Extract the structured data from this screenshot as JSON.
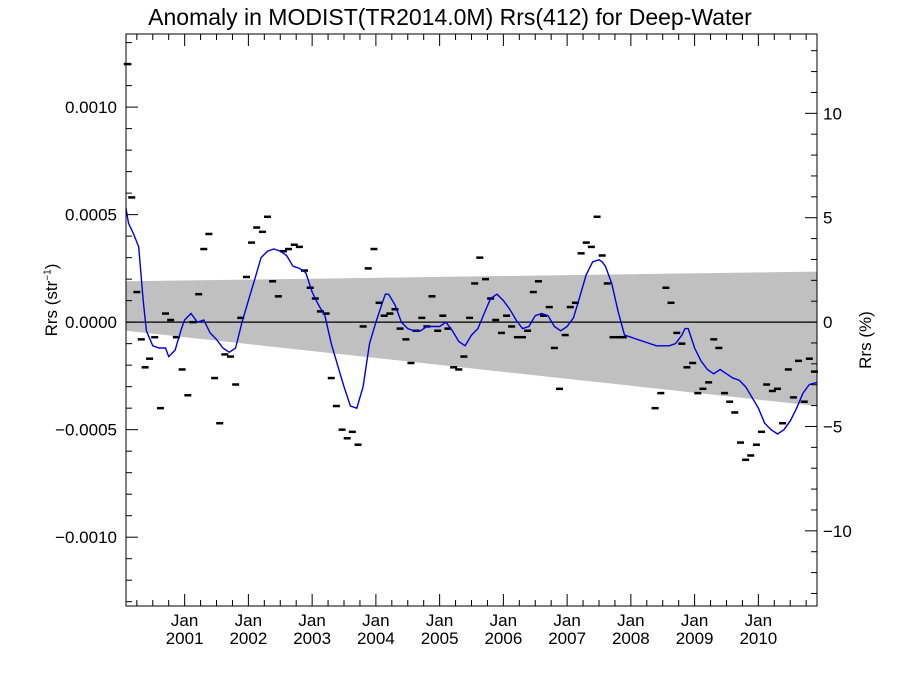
{
  "chart_data": {
    "type": "line",
    "title": "Anomaly in MODIST(TR2014.0M) Rrs(412) for Deep-Water",
    "ylabel_left_text": "Rrs (str",
    "ylabel_left_sup": "−1",
    "ylabel_left_close": ")",
    "ylabel_right": "Rrs (%)",
    "xlim": [
      2000.08,
      2010.92
    ],
    "ylim_left": [
      -0.00132,
      0.00134
    ],
    "ylim_right": [
      -13.6,
      13.8
    ],
    "y_ticks_left": [
      {
        "v": 0.001,
        "label": "0.0010"
      },
      {
        "v": 0.0005,
        "label": "0.0005"
      },
      {
        "v": 0.0,
        "label": "0.0000"
      },
      {
        "v": -0.0005,
        "label": "−0.0005"
      },
      {
        "v": -0.001,
        "label": "−0.0010"
      }
    ],
    "y_ticks_right": [
      {
        "v": 10,
        "label": "10"
      },
      {
        "v": 5,
        "label": "5"
      },
      {
        "v": 0,
        "label": "0"
      },
      {
        "v": -5,
        "label": "−5"
      },
      {
        "v": -10,
        "label": "−10"
      }
    ],
    "x_ticks": [
      {
        "v": 2001.0,
        "month": "Jan",
        "year": "2001"
      },
      {
        "v": 2002.0,
        "month": "Jan",
        "year": "2002"
      },
      {
        "v": 2003.0,
        "month": "Jan",
        "year": "2003"
      },
      {
        "v": 2004.0,
        "month": "Jan",
        "year": "2004"
      },
      {
        "v": 2005.0,
        "month": "Jan",
        "year": "2005"
      },
      {
        "v": 2006.0,
        "month": "Jan",
        "year": "2006"
      },
      {
        "v": 2007.0,
        "month": "Jan",
        "year": "2007"
      },
      {
        "v": 2008.0,
        "month": "Jan",
        "year": "2008"
      },
      {
        "v": 2009.0,
        "month": "Jan",
        "year": "2009"
      },
      {
        "v": 2010.0,
        "month": "Jan",
        "year": "2010"
      }
    ],
    "uncertainty_band": {
      "color": "#c0c0c0",
      "x": [
        2000.08,
        2010.92
      ],
      "upper": [
        0.00019,
        0.000235
      ],
      "lower": [
        -4e-05,
        -0.00039
      ]
    },
    "smoothed_series": {
      "color": "#0000dd",
      "x": [
        2000.08,
        2000.12,
        2000.2,
        2000.28,
        2000.35,
        2000.4,
        2000.5,
        2000.6,
        2000.7,
        2000.75,
        2000.85,
        2000.95,
        2001.0,
        2001.1,
        2001.2,
        2001.3,
        2001.4,
        2001.5,
        2001.6,
        2001.7,
        2001.8,
        2001.9,
        2002.0,
        2002.1,
        2002.2,
        2002.3,
        2002.4,
        2002.5,
        2002.6,
        2002.7,
        2002.8,
        2002.9,
        2003.0,
        2003.1,
        2003.2,
        2003.3,
        2003.4,
        2003.5,
        2003.6,
        2003.7,
        2003.8,
        2003.9,
        2004.0,
        2004.1,
        2004.15,
        2004.2,
        2004.3,
        2004.4,
        2004.5,
        2004.6,
        2004.7,
        2004.8,
        2004.9,
        2005.0,
        2005.1,
        2005.2,
        2005.3,
        2005.4,
        2005.5,
        2005.6,
        2005.7,
        2005.8,
        2005.9,
        2006.0,
        2006.1,
        2006.2,
        2006.3,
        2006.4,
        2006.5,
        2006.6,
        2006.7,
        2006.8,
        2006.9,
        2007.0,
        2007.1,
        2007.2,
        2007.3,
        2007.4,
        2007.5,
        2007.55,
        2007.6,
        2007.7,
        2007.8,
        2007.9,
        2008.0,
        2008.2,
        2008.4,
        2008.6,
        2008.7,
        2008.8,
        2008.85,
        2008.9,
        2009.0,
        2009.1,
        2009.2,
        2009.3,
        2009.4,
        2009.5,
        2009.6,
        2009.7,
        2009.8,
        2009.9,
        2010.0,
        2010.1,
        2010.2,
        2010.3,
        2010.4,
        2010.5,
        2010.6,
        2010.7,
        2010.8,
        2010.92
      ],
      "y": [
        0.00053,
        0.00046,
        0.00041,
        0.00035,
        0.0001,
        -4e-05,
        -0.00011,
        -0.00012,
        -0.00012,
        -0.00016,
        -0.00013,
        -3e-05,
        1e-05,
        4e-05,
        0.0,
        1e-05,
        -5e-05,
        -8e-05,
        -0.00012,
        -0.00014,
        -0.00012,
        0.0,
        0.0001,
        0.0002,
        0.0003,
        0.00033,
        0.00034,
        0.00033,
        0.00031,
        0.00026,
        0.00025,
        0.00023,
        0.00014,
        8e-05,
        3e-05,
        -0.0001,
        -0.0002,
        -0.0003,
        -0.00039,
        -0.0004,
        -0.0003,
        -0.0001,
        0.0,
        9e-05,
        0.00013,
        0.00013,
        8e-05,
        0.0,
        -3e-05,
        -4e-05,
        -4e-05,
        -2e-05,
        -2e-05,
        -2e-05,
        0.0,
        -4e-05,
        -9e-05,
        -0.00011,
        -6e-05,
        -3e-05,
        4e-05,
        0.00011,
        0.00013,
        0.0001,
        6e-05,
        1e-05,
        -3e-05,
        -2e-05,
        3e-05,
        4e-05,
        3e-05,
        -2e-05,
        -4e-05,
        -2e-05,
        2e-05,
        0.00012,
        0.00022,
        0.00028,
        0.00029,
        0.00028,
        0.00026,
        0.00018,
        5e-05,
        -6e-05,
        -7e-05,
        -9e-05,
        -0.00011,
        -0.00011,
        -0.0001,
        -6e-05,
        -3e-05,
        -3e-05,
        -0.00012,
        -0.00018,
        -0.00022,
        -0.00024,
        -0.00022,
        -0.00024,
        -0.00026,
        -0.00027,
        -0.0003,
        -0.00035,
        -0.0004,
        -0.00047,
        -0.0005,
        -0.00052,
        -0.0005,
        -0.00046,
        -0.0004,
        -0.00033,
        -0.00029,
        -0.00028
      ]
    },
    "monthly_points": {
      "color": "#000000",
      "x": [
        2000.1,
        2000.17,
        2000.25,
        2000.32,
        2000.38,
        2000.45,
        2000.53,
        2000.62,
        2000.7,
        2000.78,
        2000.87,
        2000.96,
        2001.05,
        2001.13,
        2001.22,
        2001.3,
        2001.38,
        2001.47,
        2001.55,
        2001.63,
        2001.72,
        2001.8,
        2001.88,
        2001.97,
        2002.05,
        2002.13,
        2002.22,
        2002.3,
        2002.38,
        2002.47,
        2002.55,
        2002.63,
        2002.72,
        2002.8,
        2002.88,
        2002.97,
        2003.05,
        2003.13,
        2003.22,
        2003.3,
        2003.38,
        2003.47,
        2003.55,
        2003.63,
        2003.72,
        2003.8,
        2003.88,
        2003.97,
        2004.05,
        2004.13,
        2004.22,
        2004.3,
        2004.38,
        2004.47,
        2004.55,
        2004.63,
        2004.72,
        2004.8,
        2004.88,
        2004.97,
        2005.05,
        2005.13,
        2005.22,
        2005.3,
        2005.38,
        2005.47,
        2005.55,
        2005.63,
        2005.72,
        2005.8,
        2005.88,
        2005.97,
        2006.05,
        2006.13,
        2006.22,
        2006.3,
        2006.38,
        2006.47,
        2006.55,
        2006.63,
        2006.72,
        2006.8,
        2006.88,
        2006.97,
        2007.05,
        2007.13,
        2007.22,
        2007.3,
        2007.38,
        2007.47,
        2007.55,
        2007.63,
        2007.72,
        2007.8,
        2007.88,
        2008.38,
        2008.47,
        2008.55,
        2008.63,
        2008.72,
        2008.8,
        2008.88,
        2008.97,
        2009.05,
        2009.13,
        2009.22,
        2009.3,
        2009.38,
        2009.47,
        2009.55,
        2009.63,
        2009.72,
        2009.8,
        2009.88,
        2009.97,
        2010.05,
        2010.13,
        2010.22,
        2010.3,
        2010.38,
        2010.47,
        2010.55,
        2010.63,
        2010.72,
        2010.8,
        2010.88
      ],
      "y": [
        0.0012,
        0.00058,
        0.00014,
        -8e-05,
        -0.00021,
        -0.00017,
        -7e-05,
        -0.0004,
        4e-05,
        1e-05,
        -7e-05,
        -0.00022,
        -0.00034,
        0.0,
        0.00013,
        0.00034,
        0.00041,
        -0.00026,
        -0.00047,
        -0.00015,
        -0.00016,
        -0.00029,
        2e-05,
        0.00021,
        0.00037,
        0.00044,
        0.00042,
        0.00049,
        0.00019,
        0.00012,
        0.00033,
        0.00034,
        0.00036,
        0.00035,
        0.00024,
        0.00016,
        0.00011,
        5e-05,
        4e-05,
        -0.00026,
        -0.00039,
        -0.0005,
        -0.00054,
        -0.00051,
        -0.00057,
        -2e-05,
        0.00025,
        0.00034,
        9e-05,
        3e-05,
        4e-05,
        6e-05,
        -3e-05,
        -8e-05,
        -0.00019,
        -4e-05,
        2e-05,
        -2e-05,
        0.00012,
        -4e-05,
        3e-05,
        -3e-05,
        -0.00021,
        -0.00022,
        -0.00016,
        2e-05,
        0.00018,
        0.0003,
        0.0002,
        0.00011,
        1e-05,
        -5e-05,
        3e-05,
        -2e-05,
        -7e-05,
        -7e-05,
        -4e-05,
        0.00014,
        0.00019,
        3e-05,
        7e-05,
        -0.00012,
        -0.00031,
        -6e-05,
        7e-05,
        9e-05,
        0.00032,
        0.00037,
        0.00035,
        0.00049,
        0.00031,
        0.00018,
        -7e-05,
        -7e-05,
        -7e-05,
        -0.0004,
        -0.00033,
        0.00016,
        9e-05,
        -5e-05,
        -0.0001,
        -0.00021,
        -0.00019,
        -0.00033,
        -0.00031,
        -0.00028,
        -8e-05,
        -0.00012,
        -0.00033,
        -0.00037,
        -0.00042,
        -0.00056,
        -0.00064,
        -0.00062,
        -0.00057,
        -0.00051,
        -0.00029,
        -0.00032,
        -0.00031,
        -0.00047,
        -0.00022,
        -0.00035,
        -0.00018,
        -0.00037,
        -0.00017,
        -0.00023
      ]
    }
  }
}
